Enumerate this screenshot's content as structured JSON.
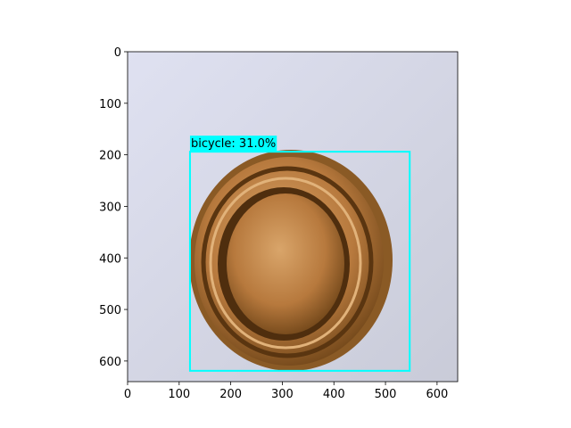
{
  "chart_data": {
    "type": "image",
    "xlim": [
      0,
      640
    ],
    "ylim": [
      640,
      0
    ],
    "xticks": [
      0,
      100,
      200,
      300,
      400,
      500,
      600
    ],
    "yticks": [
      0,
      100,
      200,
      300,
      400,
      500,
      600
    ],
    "boxes": [
      {
        "label": "bicycle: 31.0%",
        "color": "#00ffff",
        "x": [
          121,
          547
        ],
        "y": [
          194,
          619
        ]
      }
    ]
  }
}
